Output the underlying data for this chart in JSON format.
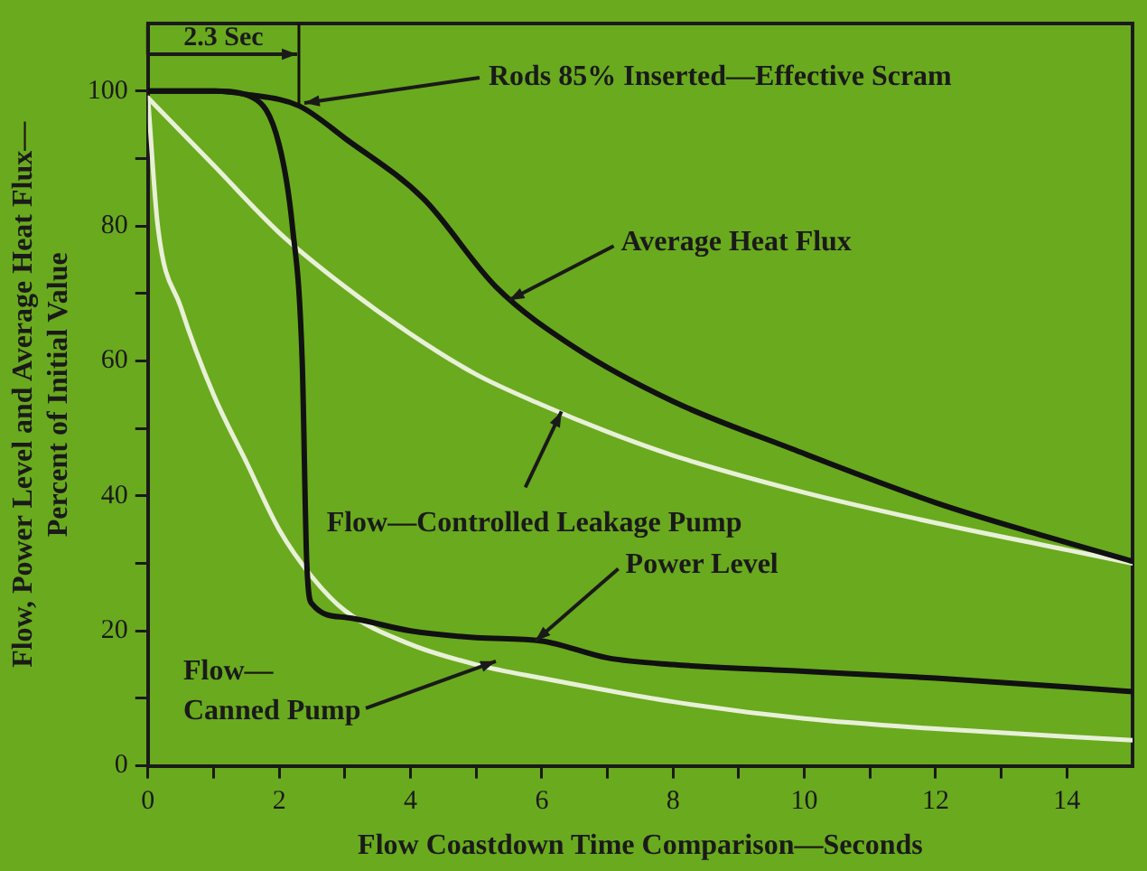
{
  "chart_data": {
    "type": "line",
    "xlabel": "Flow Coastdown Time Comparison—Seconds",
    "ylabel": "Flow, Power Level and Average Heat Flux—\nPercent of Initial Value",
    "xlim": [
      0,
      15
    ],
    "xticks": [
      0,
      {
        "value": 1,
        "label": null
      },
      2,
      {
        "value": 3,
        "label": null
      },
      4,
      {
        "value": 5,
        "label": null
      },
      6,
      {
        "value": 7,
        "label": null
      },
      8,
      {
        "value": 9,
        "label": null
      },
      10,
      {
        "value": 11,
        "label": null
      },
      12,
      {
        "value": 13,
        "label": null
      },
      14
    ],
    "ylim": [
      0,
      110
    ],
    "yticks": [
      0,
      {
        "value": 10,
        "label": null
      },
      20,
      {
        "value": 30,
        "label": null
      },
      40,
      {
        "value": 50,
        "label": null
      },
      60,
      {
        "value": 70,
        "label": null
      },
      80,
      {
        "value": 90,
        "label": null
      },
      100
    ],
    "grid": false,
    "legend": false,
    "marker": "none",
    "line_style": "solid",
    "series": [
      {
        "color": "#111111",
        "x": [
          0,
          1,
          1.5,
          2.3,
          3,
          4.2,
          5.3,
          6.5,
          8,
          9.8,
          12,
          13.5,
          15
        ],
        "values": [
          100,
          100,
          99.5,
          97.8,
          93,
          84,
          71,
          62,
          54,
          47,
          39,
          34.5,
          30.3
        ]
      },
      {
        "color": "#111111",
        "x": [
          0,
          1,
          1.6,
          2.0,
          2.2,
          2.35,
          2.42,
          2.5,
          3,
          4,
          5,
          6,
          7,
          8,
          10,
          12,
          15
        ],
        "values": [
          100,
          100,
          99,
          92,
          80,
          60,
          30,
          24,
          22,
          20,
          19,
          18.5,
          16,
          15,
          14,
          13,
          11
        ]
      },
      {
        "color": "#e8f0d8",
        "x": [
          0,
          1,
          2,
          3,
          4,
          5,
          6,
          7,
          8,
          10,
          12,
          14,
          15
        ],
        "values": [
          99,
          89,
          79,
          71,
          64,
          58,
          53.5,
          49.5,
          46,
          40.5,
          36,
          32,
          30
        ]
      },
      {
        "color": "#e8f0d8",
        "x": [
          0,
          0.15,
          0.5,
          1,
          1.5,
          2,
          2.5,
          3,
          4,
          5,
          6,
          8,
          10,
          12,
          15
        ],
        "values": [
          99,
          80,
          68,
          55,
          45,
          35,
          28,
          23,
          18,
          15,
          13,
          9.5,
          7,
          5.5,
          3.8
        ]
      }
    ],
    "ref_lines": [
      {
        "axis": "x",
        "value": 2.3,
        "label": "Rods 85% Inserted—Effective Scram",
        "color": "#111111"
      }
    ],
    "annotations": [
      "2.3 Sec",
      {
        "text": "Average Heat Flux",
        "x": 5.5,
        "y": 69
      },
      {
        "text": "Flow—Controlled Leakage Pump",
        "x": 6.3,
        "y": 52.5
      },
      {
        "text": "Power Level",
        "x": 5.9,
        "y": 18.5
      },
      {
        "text": "Flow—\nCanned Pump",
        "x": 5.3,
        "y": 15.5
      }
    ]
  }
}
